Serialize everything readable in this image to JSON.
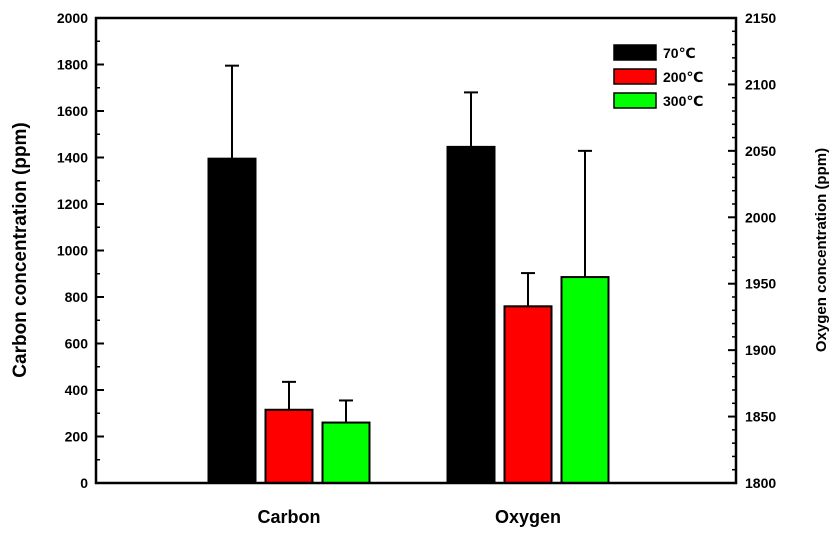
{
  "chart_data": {
    "type": "bar",
    "categories": [
      "Carbon",
      "Oxygen"
    ],
    "ylabel": "Carbon concentration (ppm)",
    "y2label": "Oxygen concentration (ppm)",
    "ylim": [
      0,
      2000
    ],
    "y2lim": [
      1800,
      2150
    ],
    "yticks": [
      "0",
      "200",
      "400",
      "600",
      "800",
      "1000",
      "1200",
      "1400",
      "1600",
      "1800",
      "2000"
    ],
    "y2ticks": [
      "1800",
      "1850",
      "1900",
      "1950",
      "2000",
      "2050",
      "2100",
      "2150"
    ],
    "legend_position": "top-right",
    "grid": false,
    "series": [
      {
        "name": "70℃",
        "color": "#000000",
        "carbon": 1395,
        "carbon_err": 400,
        "oxygen": 2053,
        "oxygen_err": 41
      },
      {
        "name": "200℃",
        "color": "#ff0000",
        "carbon": 315,
        "carbon_err": 120,
        "oxygen": 1933,
        "oxygen_err": 25
      },
      {
        "name": "300℃",
        "color": "#00ff00",
        "carbon": 260,
        "carbon_err": 95,
        "oxygen": 1955,
        "oxygen_err": 95
      }
    ]
  }
}
